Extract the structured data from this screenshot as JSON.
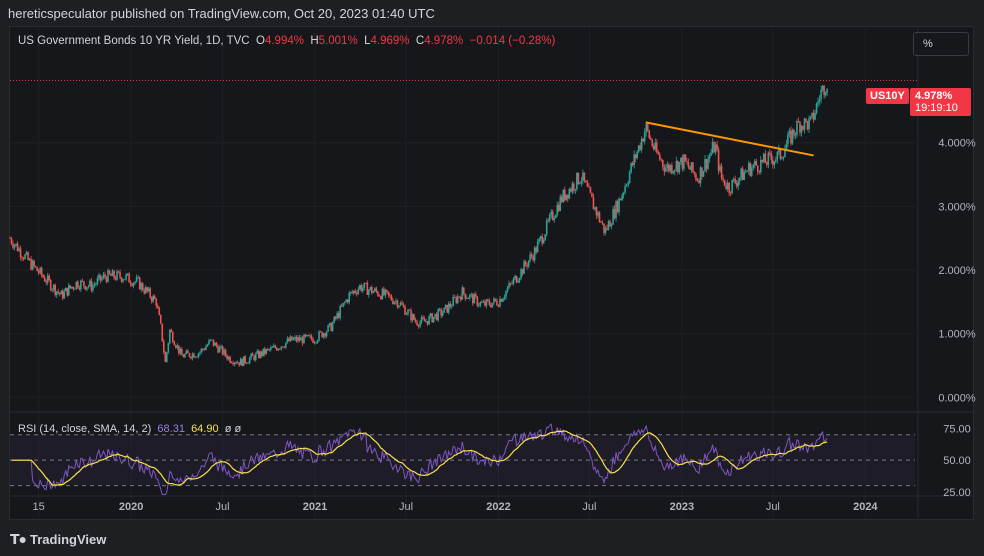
{
  "header": {
    "published": "hereticspeculator published on TradingView.com, Oct 20, 2023 01:40 UTC"
  },
  "legend": {
    "title": "US Government Bonds 10 YR Yield, 1D, TVC",
    "o_label": "O",
    "o_value": "4.994%",
    "h_label": "H",
    "h_value": "5.001%",
    "l_label": "L",
    "l_value": "4.969%",
    "c_label": "C",
    "c_value": "4.978%",
    "change": "−0.014 (−0.28%)"
  },
  "scale_button": "%",
  "price_tag": {
    "symbol": "US10Y",
    "value": "4.978%",
    "countdown": "19:19:10"
  },
  "rsi_legend": {
    "label": "RSI (14, close, SMA, 14, 2)",
    "rsi": "68.31",
    "sma": "64.90",
    "extra": "ø  ø"
  },
  "footer": {
    "brand": "TradingView"
  },
  "colors": {
    "up": "#26a69a",
    "down": "#ef5350",
    "trendline": "#ff9800",
    "rsi": "#7e57c2",
    "rsi_ma": "#f7e04a",
    "last_price": "#f23645"
  },
  "chart_data": {
    "type": "candlestick",
    "title": "US Government Bonds 10 YR Yield, 1D, TVC",
    "y_unit": "%",
    "ylim": [
      -0.2,
      5.3
    ],
    "yticks": [
      "0.000%",
      "1.000%",
      "2.000%",
      "3.000%",
      "4.000%"
    ],
    "ytick_values": [
      0,
      1,
      2,
      3,
      4
    ],
    "xticks": [
      "15",
      "2020",
      "Jul",
      "2021",
      "Jul",
      "2022",
      "Jul",
      "2023",
      "Jul",
      "2024"
    ],
    "xtick_dates": [
      "2019-07-01",
      "2020-01-01",
      "2020-07-01",
      "2021-01-01",
      "2021-07-01",
      "2022-01-01",
      "2022-07-01",
      "2023-01-01",
      "2023-07-01",
      "2024-01-01"
    ],
    "xlim": [
      "2019-05-05",
      "2024-03-10"
    ],
    "series": [
      {
        "name": "US10Y",
        "type": "candlestick-close",
        "dates": [
          "2019-05-05",
          "2019-06-15",
          "2019-08-15",
          "2019-09-15",
          "2019-10-15",
          "2019-11-10",
          "2019-12-15",
          "2020-01-15",
          "2020-02-20",
          "2020-03-01",
          "2020-03-09",
          "2020-03-18",
          "2020-04-10",
          "2020-05-15",
          "2020-06-08",
          "2020-07-15",
          "2020-08-05",
          "2020-09-15",
          "2020-10-20",
          "2020-11-15",
          "2020-12-31",
          "2021-02-01",
          "2021-03-10",
          "2021-03-31",
          "2021-05-15",
          "2021-06-15",
          "2021-07-20",
          "2021-08-04",
          "2021-09-15",
          "2021-10-21",
          "2021-12-01",
          "2022-01-01",
          "2022-02-15",
          "2022-03-15",
          "2022-04-15",
          "2022-05-06",
          "2022-06-14",
          "2022-08-01",
          "2022-08-30",
          "2022-10-21",
          "2022-11-10",
          "2022-12-01",
          "2023-01-05",
          "2023-02-01",
          "2023-03-08",
          "2023-03-20",
          "2023-04-05",
          "2023-05-15",
          "2023-06-15",
          "2023-07-15",
          "2023-08-05",
          "2023-08-22",
          "2023-09-15",
          "2023-10-05",
          "2023-10-19"
        ],
        "close": [
          2.5,
          2.1,
          1.6,
          1.8,
          1.75,
          1.9,
          1.9,
          1.8,
          1.5,
          1.05,
          0.54,
          1.05,
          0.65,
          0.7,
          0.88,
          0.61,
          0.55,
          0.68,
          0.8,
          0.9,
          0.92,
          1.1,
          1.6,
          1.74,
          1.62,
          1.5,
          1.2,
          1.18,
          1.35,
          1.65,
          1.45,
          1.51,
          1.98,
          2.3,
          2.8,
          3.12,
          3.48,
          2.6,
          3.1,
          4.23,
          3.85,
          3.6,
          3.7,
          3.45,
          3.96,
          3.45,
          3.3,
          3.6,
          3.7,
          3.8,
          4.08,
          4.3,
          4.3,
          4.8,
          4.98
        ]
      },
      {
        "name": "Trendline",
        "type": "line",
        "points": [
          [
            "2022-10-21",
            4.32
          ],
          [
            "2023-09-20",
            3.8
          ]
        ]
      }
    ],
    "last_value": 4.978,
    "rsi": {
      "label": "RSI (14, close, SMA, 14, 2)",
      "ylim": [
        25,
        80
      ],
      "yticks": [
        "75.00",
        "50.00",
        "25.00"
      ],
      "ytick_values": [
        75,
        50,
        25
      ],
      "bands": [
        70,
        50,
        30
      ],
      "current_rsi": 68.31,
      "current_sma": 64.9
    }
  }
}
